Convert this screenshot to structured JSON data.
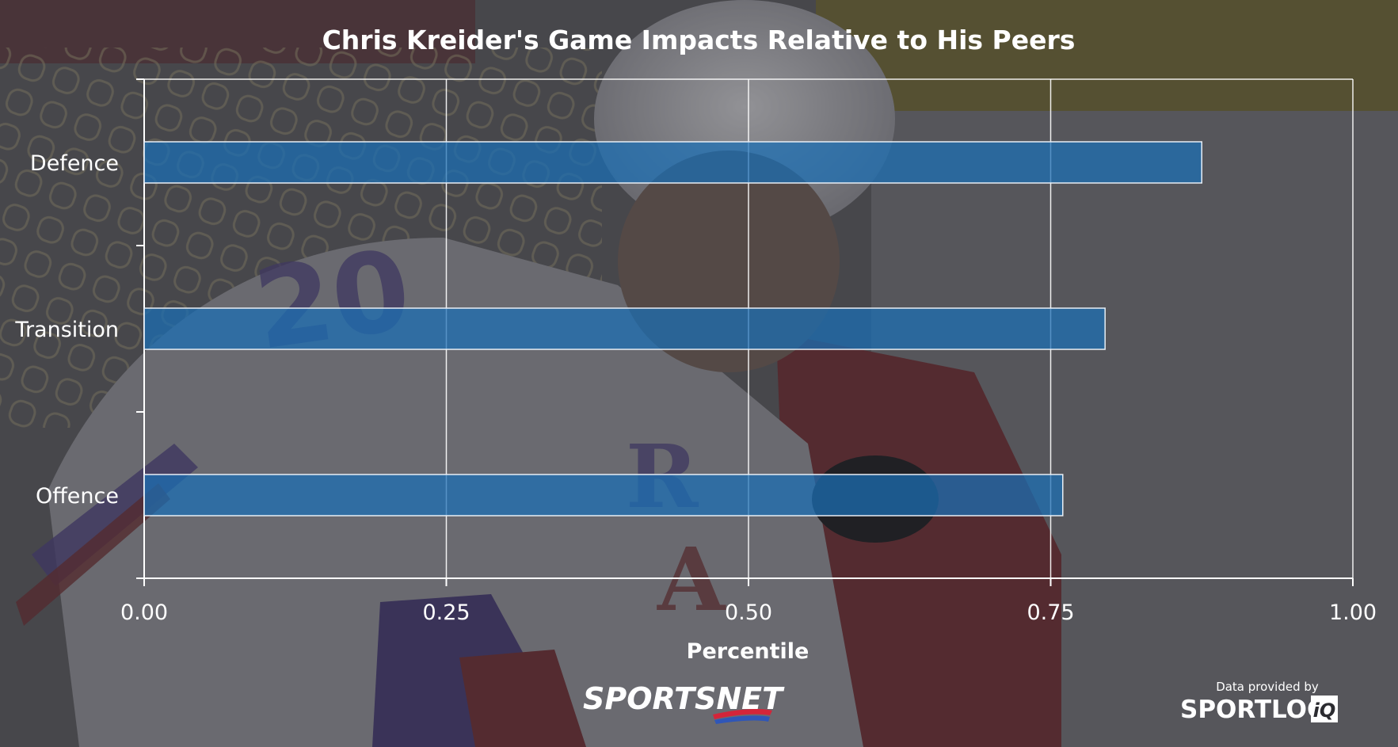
{
  "chart_data": {
    "type": "bar",
    "orientation": "horizontal",
    "title": "Chris Kreider's Game Impacts Relative to His Peers",
    "xlabel": "Percentile",
    "ylabel": "",
    "categories": [
      "Defence",
      "Transition",
      "Offence"
    ],
    "values": [
      0.875,
      0.795,
      0.76
    ],
    "xlim": [
      0,
      1
    ],
    "xticks": [
      "0.00",
      "0.25",
      "0.50",
      "0.75",
      "1.00"
    ],
    "grid": true,
    "bar_color": "#1a6fb5"
  },
  "branding": {
    "sportsnet": "SPORTSNET",
    "data_credit": "Data provided by",
    "sportlogiq_main": "SPORTLOG",
    "sportlogiq_iq": "iQ"
  },
  "colors": {
    "bar_fill": "#1a6fb5",
    "bar_stroke": "#e8eef5",
    "grid": "#ffffff",
    "text": "#ffffff",
    "accent_red": "#d3253a",
    "accent_blue": "#2f56b8"
  }
}
